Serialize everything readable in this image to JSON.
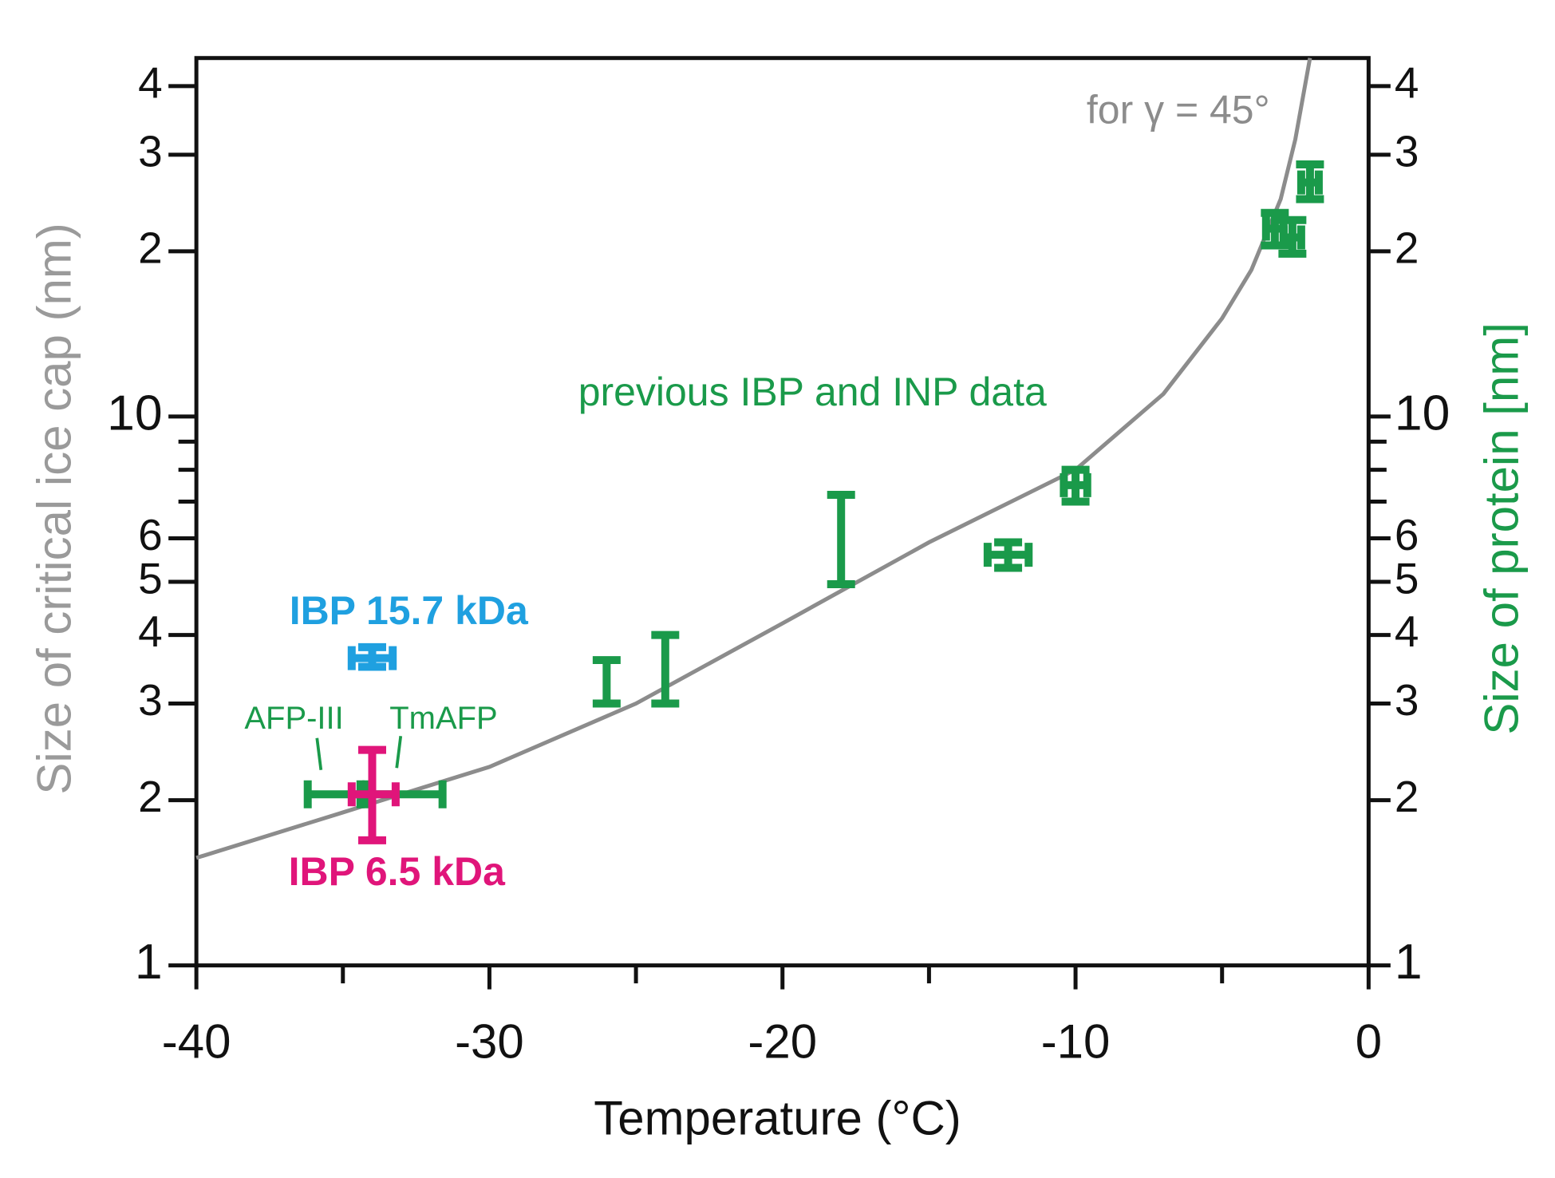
{
  "chart_data": {
    "type": "scatter",
    "xlabel": "Temperature  (°C)",
    "ylabel": "Size of critical ice cap (nm)",
    "y2label": "Size of protein [nm]",
    "ylabel_color": "#9a9a9a",
    "y2label_color": "#1a9a4a",
    "ylog": true,
    "y2log": true,
    "xlim": [
      -40,
      0
    ],
    "xticks": [
      -40,
      -30,
      -20,
      -10,
      0
    ],
    "xticks_minor": [
      -35,
      -25,
      -15,
      -5
    ],
    "ylim": [
      1,
      45
    ],
    "yticks": [
      1,
      2,
      3,
      4,
      5,
      6,
      10,
      {
        "value": 20,
        "label": "2"
      },
      {
        "value": 30,
        "label": "3"
      },
      {
        "value": 40,
        "label": "4"
      }
    ],
    "yticks_minor": [
      7,
      8,
      9
    ],
    "y2lim": [
      1,
      45
    ],
    "y2ticks": [
      1,
      2,
      3,
      4,
      5,
      6,
      10,
      {
        "value": 20,
        "label": "2"
      },
      {
        "value": 30,
        "label": "3"
      },
      {
        "value": 40,
        "label": "4"
      }
    ],
    "y2ticks_minor": [
      7,
      8,
      9
    ],
    "curve": {
      "name": "for γ = 45°",
      "color": "#8c8c8c",
      "x": [
        -40,
        -35,
        -30,
        -25,
        -20,
        -15,
        -10,
        -7,
        -5,
        -4,
        -3,
        -2.5,
        -2
      ],
      "values": [
        1.57,
        1.9,
        2.3,
        3.0,
        4.2,
        5.9,
        8.0,
        11,
        15.1,
        18.5,
        24.9,
        32,
        45
      ]
    },
    "series": [
      {
        "name": "previous IBP and INP data",
        "color": "#1a9a4a",
        "axis": "y2",
        "x": [
          -26,
          -24,
          -18,
          -12.3,
          -10,
          -3.2,
          -2.6,
          -2.0
        ],
        "values": [
          3.3,
          3.5,
          6.0,
          5.6,
          7.5,
          22,
          21.2,
          26.7
        ],
        "ymin": [
          3.0,
          3.0,
          4.95,
          5.3,
          7.0,
          20.5,
          19.8,
          24.9
        ],
        "ymax": [
          3.6,
          4.0,
          7.2,
          5.9,
          8.0,
          23.5,
          22.8,
          28.8
        ],
        "xmin": [
          null,
          null,
          null,
          -13,
          -10.4,
          -3.5,
          -2.9,
          -2.3
        ],
        "xmax": [
          null,
          null,
          null,
          -11.6,
          -9.6,
          -2.9,
          -2.3,
          -1.7
        ]
      },
      {
        "name": "AFP-III",
        "color": "#1a9a4a",
        "axis": "y2",
        "x": [
          -35.3
        ],
        "values": [
          2.05
        ],
        "ymin": [
          null
        ],
        "ymax": [
          null
        ],
        "xmin": [
          -36.2
        ],
        "xmax": [
          -34.4
        ]
      },
      {
        "name": "TmAFP",
        "color": "#1a9a4a",
        "axis": "y2",
        "x": [
          -32.9
        ],
        "values": [
          2.05
        ],
        "ymin": [
          null
        ],
        "ymax": [
          null
        ],
        "xmin": [
          -34.2
        ],
        "xmax": [
          -31.6
        ]
      },
      {
        "name": "IBP 15.7 kDa",
        "color": "#1fa0e0",
        "axis": "y2",
        "x": [
          -34
        ],
        "values": [
          3.63
        ],
        "ymin": [
          3.5
        ],
        "ymax": [
          3.8
        ],
        "xmin": [
          -34.7
        ],
        "xmax": [
          -33.3
        ]
      },
      {
        "name": "IBP 6.5 kDa",
        "color": "#e0157a",
        "axis": "y2",
        "x": [
          -34
        ],
        "values": [
          2.05
        ],
        "ymin": [
          1.69
        ],
        "ymax": [
          2.47
        ],
        "xmin": [
          -34.7
        ],
        "xmax": [
          -33.2
        ]
      }
    ]
  }
}
